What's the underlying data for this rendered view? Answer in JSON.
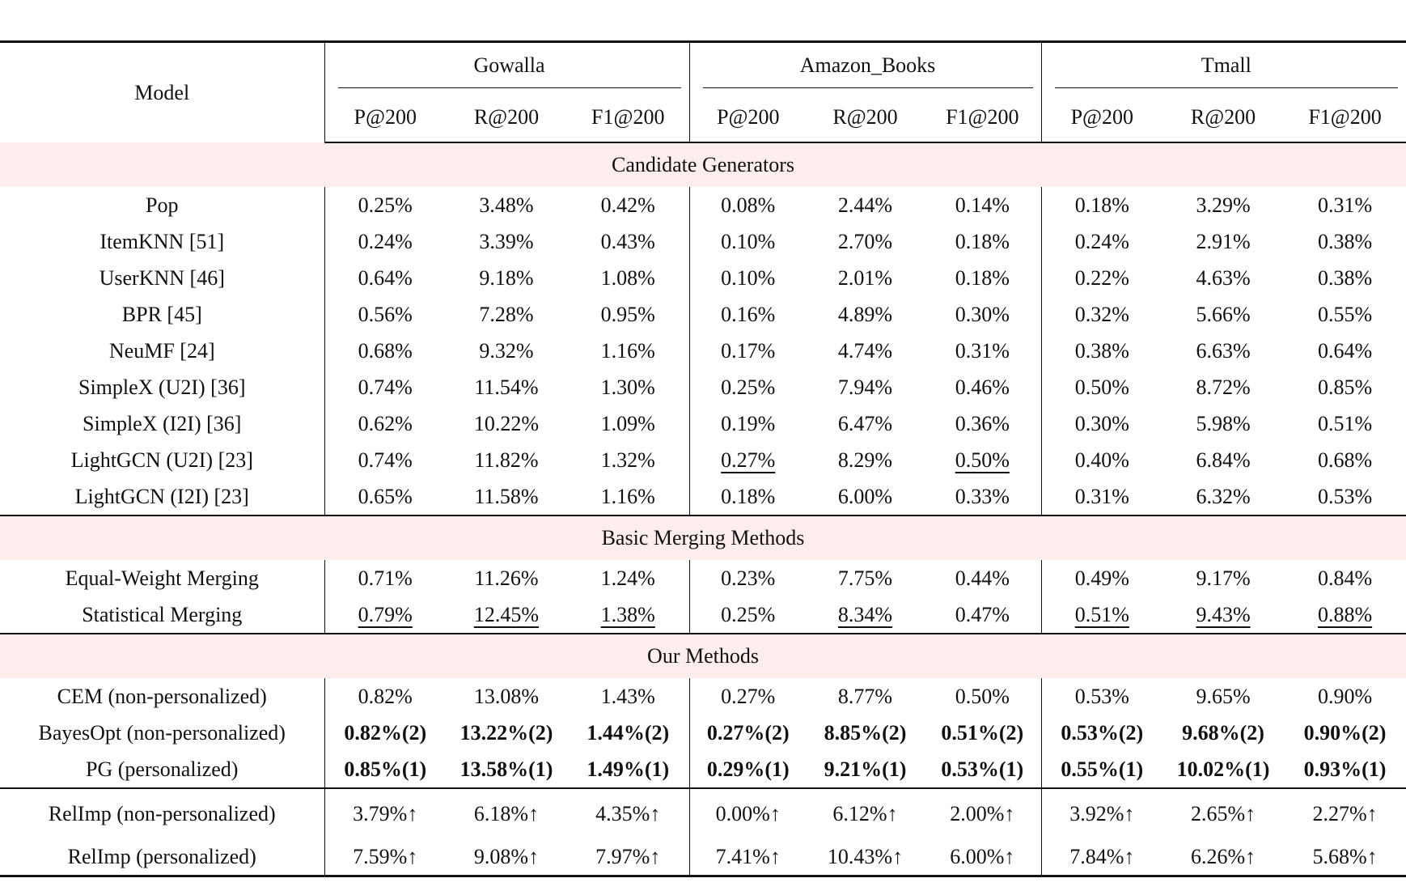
{
  "table": {
    "header": {
      "model": "Model",
      "groups": [
        {
          "name": "Gowalla",
          "metrics": [
            "P@200",
            "R@200",
            "F1@200"
          ]
        },
        {
          "name": "Amazon_Books",
          "metrics": [
            "P@200",
            "R@200",
            "F1@200"
          ]
        },
        {
          "name": "Tmall",
          "metrics": [
            "P@200",
            "R@200",
            "F1@200"
          ]
        }
      ]
    },
    "sections": [
      {
        "title": "Candidate Generators",
        "rows": [
          {
            "model": "Pop",
            "cells": [
              "0.25%",
              "3.48%",
              "0.42%",
              "0.08%",
              "2.44%",
              "0.14%",
              "0.18%",
              "3.29%",
              "0.31%"
            ]
          },
          {
            "model": "ItemKNN [51]",
            "cells": [
              "0.24%",
              "3.39%",
              "0.43%",
              "0.10%",
              "2.70%",
              "0.18%",
              "0.24%",
              "2.91%",
              "0.38%"
            ]
          },
          {
            "model": "UserKNN [46]",
            "cells": [
              "0.64%",
              "9.18%",
              "1.08%",
              "0.10%",
              "2.01%",
              "0.18%",
              "0.22%",
              "4.63%",
              "0.38%"
            ]
          },
          {
            "model": "BPR [45]",
            "cells": [
              "0.56%",
              "7.28%",
              "0.95%",
              "0.16%",
              "4.89%",
              "0.30%",
              "0.32%",
              "5.66%",
              "0.55%"
            ]
          },
          {
            "model": "NeuMF [24]",
            "cells": [
              "0.68%",
              "9.32%",
              "1.16%",
              "0.17%",
              "4.74%",
              "0.31%",
              "0.38%",
              "6.63%",
              "0.64%"
            ]
          },
          {
            "model": "SimpleX (U2I) [36]",
            "cells": [
              "0.74%",
              "11.54%",
              "1.30%",
              "0.25%",
              "7.94%",
              "0.46%",
              "0.50%",
              "8.72%",
              "0.85%"
            ]
          },
          {
            "model": "SimpleX (I2I) [36]",
            "cells": [
              "0.62%",
              "10.22%",
              "1.09%",
              "0.19%",
              "6.47%",
              "0.36%",
              "0.30%",
              "5.98%",
              "0.51%"
            ]
          },
          {
            "model": "LightGCN (U2I) [23]",
            "cells": [
              "0.74%",
              "11.82%",
              "1.32%",
              "0.27%",
              "8.29%",
              "0.50%",
              "0.40%",
              "6.84%",
              "0.68%"
            ],
            "underlined": [
              3,
              5
            ]
          },
          {
            "model": "LightGCN (I2I) [23]",
            "cells": [
              "0.65%",
              "11.58%",
              "1.16%",
              "0.18%",
              "6.00%",
              "0.33%",
              "0.31%",
              "6.32%",
              "0.53%"
            ]
          }
        ]
      },
      {
        "title": "Basic Merging Methods",
        "rows": [
          {
            "model": "Equal-Weight Merging",
            "cells": [
              "0.71%",
              "11.26%",
              "1.24%",
              "0.23%",
              "7.75%",
              "0.44%",
              "0.49%",
              "9.17%",
              "0.84%"
            ]
          },
          {
            "model": "Statistical Merging",
            "cells": [
              "0.79%",
              "12.45%",
              "1.38%",
              "0.25%",
              "8.34%",
              "0.47%",
              "0.51%",
              "9.43%",
              "0.88%"
            ],
            "underlined": [
              0,
              1,
              2,
              4,
              6,
              7,
              8
            ]
          }
        ]
      },
      {
        "title": "Our Methods",
        "rows": [
          {
            "model": "CEM (non-personalized)",
            "cells": [
              "0.82%",
              "13.08%",
              "1.43%",
              "0.27%",
              "8.77%",
              "0.50%",
              "0.53%",
              "9.65%",
              "0.90%"
            ]
          },
          {
            "model": "BayesOpt (non-personalized)",
            "cells": [
              "0.82%(2)",
              "13.22%(2)",
              "1.44%(2)",
              "0.27%(2)",
              "8.85%(2)",
              "0.51%(2)",
              "0.53%(2)",
              "9.68%(2)",
              "0.90%(2)"
            ],
            "bold": true
          },
          {
            "model": "PG (personalized)",
            "cells": [
              "0.85%(1)",
              "13.58%(1)",
              "1.49%(1)",
              "0.29%(1)",
              "9.21%(1)",
              "0.53%(1)",
              "0.55%(1)",
              "10.02%(1)",
              "0.93%(1)"
            ],
            "bold": true
          }
        ]
      },
      {
        "rows": [
          {
            "model": "RelImp (non-personalized)",
            "cells": [
              "3.79%↑",
              "6.18%↑",
              "4.35%↑",
              "0.00%↑",
              "6.12%↑",
              "2.00%↑",
              "3.92%↑",
              "2.65%↑",
              "2.27%↑"
            ]
          },
          {
            "model": "RelImp (personalized)",
            "cells": [
              "7.59%↑",
              "9.08%↑",
              "7.97%↑",
              "7.41%↑",
              "10.43%↑",
              "6.00%↑",
              "7.84%↑",
              "6.26%↑",
              "5.68%↑"
            ]
          }
        ]
      }
    ]
  }
}
